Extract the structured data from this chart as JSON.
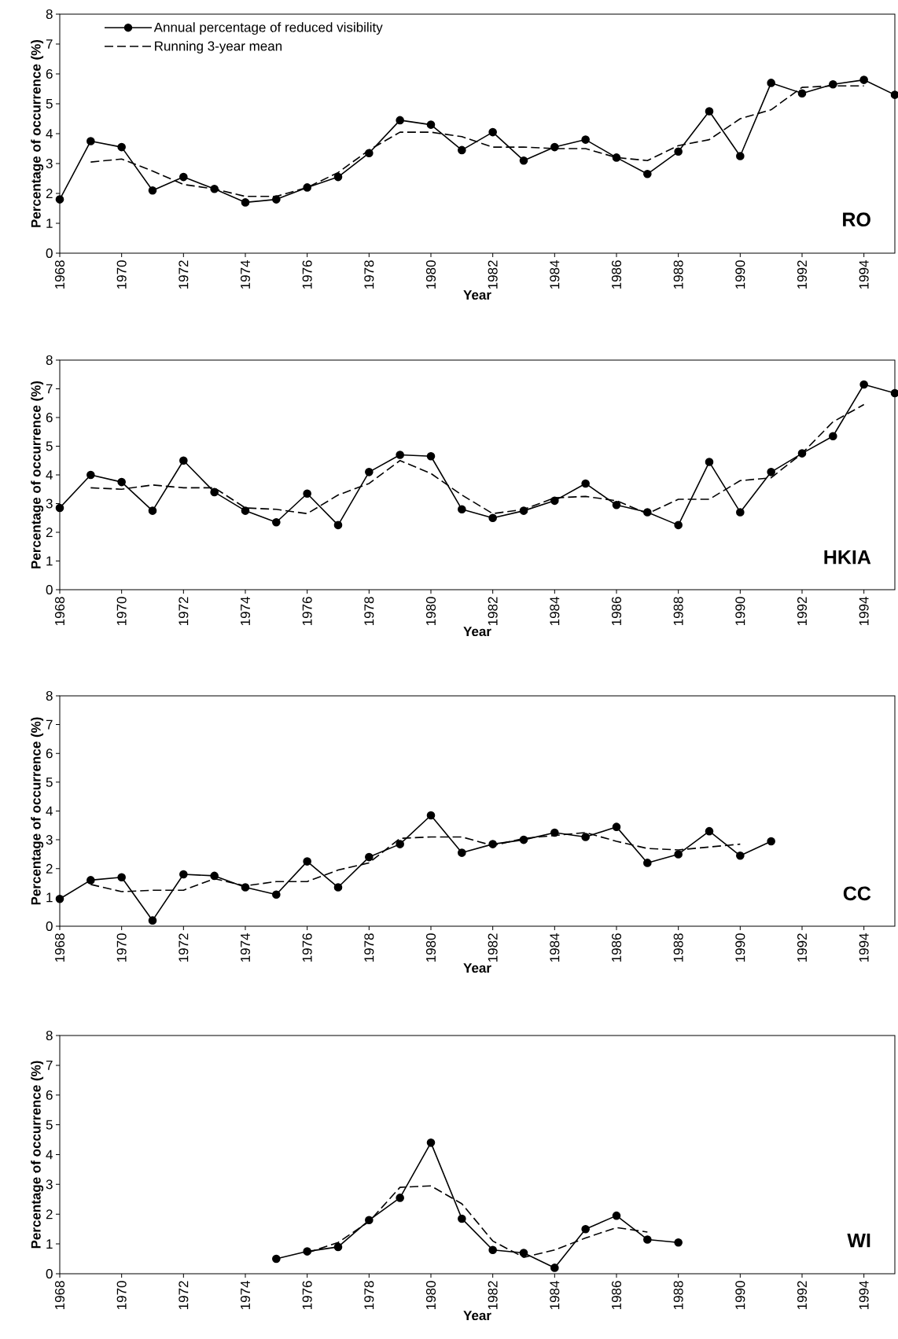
{
  "chart_data": [
    {
      "type": "line",
      "title": "RO",
      "xlabel": "Year",
      "ylabel": "Percentage of occurrence (%)",
      "xlim": [
        1968,
        1995
      ],
      "ylim": [
        0,
        8
      ],
      "xticks": [
        1968,
        1970,
        1972,
        1974,
        1976,
        1978,
        1980,
        1982,
        1984,
        1986,
        1988,
        1990,
        1992,
        1994
      ],
      "yticks": [
        0,
        1,
        2,
        3,
        4,
        5,
        6,
        7,
        8
      ],
      "legend": "top left",
      "grid": false,
      "series": [
        {
          "name": "Annual percentage of reduced visibility",
          "color": "#000000",
          "marker": "circle",
          "line_style": "solid",
          "x": [
            1968,
            1969,
            1970,
            1971,
            1972,
            1973,
            1974,
            1975,
            1976,
            1977,
            1978,
            1979,
            1980,
            1981,
            1982,
            1983,
            1984,
            1985,
            1986,
            1987,
            1988,
            1989,
            1990,
            1991,
            1992,
            1993,
            1994,
            1995
          ],
          "values": [
            1.8,
            3.75,
            3.55,
            2.1,
            2.55,
            2.15,
            1.7,
            1.8,
            2.2,
            2.55,
            3.35,
            4.45,
            4.3,
            3.45,
            4.05,
            3.1,
            3.55,
            3.8,
            3.2,
            2.65,
            3.4,
            4.75,
            3.25,
            5.7,
            5.35,
            5.65,
            5.8,
            5.3
          ]
        },
        {
          "name": "Running 3-year mean",
          "color": "#000000",
          "marker": "none",
          "line_style": "dashed",
          "x": [
            1969,
            1970,
            1971,
            1972,
            1973,
            1974,
            1975,
            1976,
            1977,
            1978,
            1979,
            1980,
            1981,
            1982,
            1983,
            1984,
            1985,
            1986,
            1987,
            1988,
            1989,
            1990,
            1991,
            1992,
            1993,
            1994
          ],
          "values": [
            3.05,
            3.15,
            2.75,
            2.3,
            2.15,
            1.9,
            1.9,
            2.2,
            2.7,
            3.45,
            4.05,
            4.05,
            3.9,
            3.55,
            3.55,
            3.5,
            3.5,
            3.2,
            3.1,
            3.6,
            3.8,
            4.5,
            4.8,
            5.55,
            5.6,
            5.6
          ]
        }
      ]
    },
    {
      "type": "line",
      "title": "HKIA",
      "xlabel": "Year",
      "ylabel": "Percentage of occurrence (%)",
      "xlim": [
        1968,
        1995
      ],
      "ylim": [
        0,
        8
      ],
      "xticks": [
        1968,
        1970,
        1972,
        1974,
        1976,
        1978,
        1980,
        1982,
        1984,
        1986,
        1988,
        1990,
        1992,
        1994
      ],
      "yticks": [
        0,
        1,
        2,
        3,
        4,
        5,
        6,
        7,
        8
      ],
      "grid": false,
      "series": [
        {
          "color": "#000000",
          "marker": "circle",
          "line_style": "solid",
          "x": [
            1968,
            1969,
            1970,
            1971,
            1972,
            1973,
            1974,
            1975,
            1976,
            1977,
            1978,
            1979,
            1980,
            1981,
            1982,
            1983,
            1984,
            1985,
            1986,
            1987,
            1988,
            1989,
            1990,
            1991,
            1992,
            1993,
            1994,
            1995
          ],
          "values": [
            2.85,
            4.0,
            3.75,
            2.75,
            4.5,
            3.4,
            2.75,
            2.35,
            3.35,
            2.25,
            4.1,
            4.7,
            4.65,
            2.8,
            2.5,
            2.75,
            3.1,
            3.7,
            2.95,
            2.7,
            2.25,
            4.45,
            2.7,
            4.1,
            4.75,
            5.35,
            7.15,
            6.85
          ]
        },
        {
          "color": "#000000",
          "marker": "none",
          "line_style": "dashed",
          "x": [
            1969,
            1970,
            1971,
            1972,
            1973,
            1974,
            1975,
            1976,
            1977,
            1978,
            1979,
            1980,
            1981,
            1982,
            1983,
            1984,
            1985,
            1986,
            1987,
            1988,
            1989,
            1990,
            1991,
            1992,
            1993,
            1994
          ],
          "values": [
            3.55,
            3.5,
            3.65,
            3.55,
            3.55,
            2.85,
            2.8,
            2.65,
            3.3,
            3.7,
            4.5,
            4.05,
            3.3,
            2.65,
            2.8,
            3.2,
            3.25,
            3.1,
            2.65,
            3.15,
            3.15,
            3.8,
            3.9,
            4.75,
            5.85,
            6.45
          ]
        }
      ]
    },
    {
      "type": "line",
      "title": "CC",
      "xlabel": "Year",
      "ylabel": "Percentage of occurrence (%)",
      "xlim": [
        1968,
        1995
      ],
      "ylim": [
        0,
        8
      ],
      "xticks": [
        1968,
        1970,
        1972,
        1974,
        1976,
        1978,
        1980,
        1982,
        1984,
        1986,
        1988,
        1990,
        1992,
        1994
      ],
      "yticks": [
        0,
        1,
        2,
        3,
        4,
        5,
        6,
        7,
        8
      ],
      "grid": false,
      "series": [
        {
          "color": "#000000",
          "marker": "circle",
          "line_style": "solid",
          "x": [
            1968,
            1969,
            1970,
            1971,
            1972,
            1973,
            1974,
            1975,
            1976,
            1977,
            1978,
            1979,
            1980,
            1981,
            1982,
            1983,
            1984,
            1985,
            1986,
            1987,
            1988,
            1989,
            1990,
            1991
          ],
          "values": [
            0.95,
            1.6,
            1.7,
            0.2,
            1.8,
            1.75,
            1.35,
            1.1,
            2.25,
            1.35,
            2.4,
            2.85,
            3.85,
            2.55,
            2.85,
            3.0,
            3.25,
            3.1,
            3.45,
            2.2,
            2.5,
            3.3,
            2.45,
            2.95
          ]
        },
        {
          "color": "#000000",
          "marker": "none",
          "line_style": "dashed",
          "x": [
            1969,
            1970,
            1971,
            1972,
            1973,
            1974,
            1975,
            1976,
            1977,
            1978,
            1979,
            1980,
            1981,
            1982,
            1983,
            1984,
            1985,
            1986,
            1987,
            1988,
            1989,
            1990
          ],
          "values": [
            1.45,
            1.2,
            1.25,
            1.25,
            1.65,
            1.4,
            1.55,
            1.55,
            1.95,
            2.2,
            3.05,
            3.1,
            3.1,
            2.8,
            3.05,
            3.15,
            3.25,
            2.95,
            2.7,
            2.65,
            2.75,
            2.85
          ]
        }
      ]
    },
    {
      "type": "line",
      "title": "WI",
      "xlabel": "Year",
      "ylabel": "Percentage of occurrence (%)",
      "xlim": [
        1968,
        1995
      ],
      "ylim": [
        0,
        8
      ],
      "xticks": [
        1968,
        1970,
        1972,
        1974,
        1976,
        1978,
        1980,
        1982,
        1984,
        1986,
        1988,
        1990,
        1992,
        1994
      ],
      "yticks": [
        0,
        1,
        2,
        3,
        4,
        5,
        6,
        7,
        8
      ],
      "grid": false,
      "series": [
        {
          "color": "#000000",
          "marker": "circle",
          "line_style": "solid",
          "x": [
            1975,
            1976,
            1977,
            1978,
            1979,
            1980,
            1981,
            1982,
            1983,
            1984,
            1985,
            1986,
            1987,
            1988
          ],
          "values": [
            0.5,
            0.75,
            0.9,
            1.8,
            2.55,
            4.4,
            1.85,
            0.8,
            0.7,
            0.2,
            1.5,
            1.95,
            1.15,
            1.05
          ]
        },
        {
          "color": "#000000",
          "marker": "none",
          "line_style": "dashed",
          "x": [
            1976,
            1977,
            1978,
            1979,
            1980,
            1981,
            1982,
            1983,
            1984,
            1985,
            1986,
            1987
          ],
          "values": [
            0.7,
            1.05,
            1.75,
            2.9,
            2.95,
            2.35,
            1.1,
            0.55,
            0.8,
            1.2,
            1.55,
            1.4
          ]
        }
      ]
    }
  ]
}
